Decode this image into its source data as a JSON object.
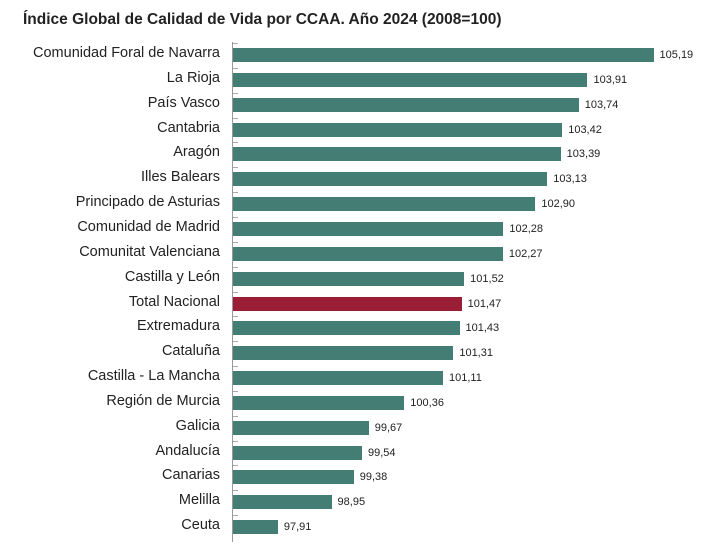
{
  "title": "Índice Global de Calidad de Vida por CCAA. Año 2024 (2008=100)",
  "colors": {
    "bar": "#437d73",
    "highlight": "#9a1e35"
  },
  "chart_data": {
    "type": "bar",
    "orientation": "horizontal",
    "title": "Índice Global de Calidad de Vida por CCAA. Año 2024 (2008=100)",
    "xlabel": "",
    "ylabel": "",
    "xlim": [
      97,
      105.3
    ],
    "grid": false,
    "categories": [
      "Comunidad Foral de Navarra",
      "La Rioja",
      "País Vasco",
      "Cantabria",
      "Aragón",
      "Illes Balears",
      "Principado de Asturias",
      "Comunidad de Madrid",
      "Comunitat Valenciana",
      "Castilla y León",
      "Total Nacional",
      "Extremadura",
      "Cataluña",
      "Castilla - La Mancha",
      "Región de Murcia",
      "Galicia",
      "Andalucía",
      "Canarias",
      "Melilla",
      "Ceuta"
    ],
    "values": [
      105.19,
      103.91,
      103.74,
      103.42,
      103.39,
      103.13,
      102.9,
      102.28,
      102.27,
      101.52,
      101.47,
      101.43,
      101.31,
      101.11,
      100.36,
      99.67,
      99.54,
      99.38,
      98.95,
      97.91
    ],
    "value_labels": [
      "105,19",
      "103,91",
      "103,74",
      "103,42",
      "103,39",
      "103,13",
      "102,90",
      "102,28",
      "102,27",
      "101,52",
      "101,47",
      "101,43",
      "101,31",
      "101,11",
      "100,36",
      "99,67",
      "99,54",
      "99,38",
      "98,95",
      "97,91"
    ],
    "highlight": "Total Nacional"
  }
}
